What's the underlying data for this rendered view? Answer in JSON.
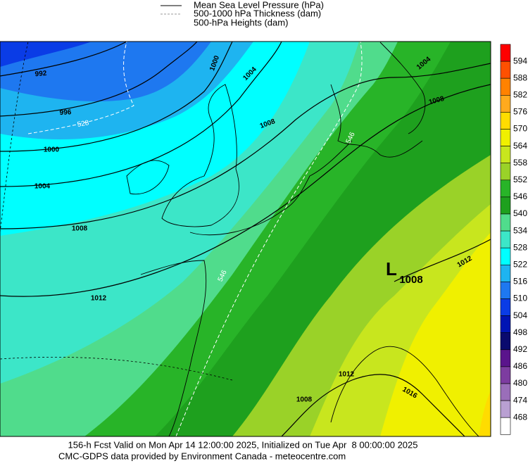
{
  "legend": [
    {
      "label": "Mean Sea Level Pressure (hPa)"
    },
    {
      "label": "500-1000 hPa Thickness (dam)"
    },
    {
      "label": "500-hPa Heights (dam)"
    }
  ],
  "colorbar": {
    "levels": [
      594,
      588,
      582,
      576,
      570,
      564,
      558,
      552,
      546,
      540,
      534,
      528,
      522,
      516,
      510,
      504,
      498,
      492,
      486,
      480,
      474,
      468
    ],
    "colors": [
      "#ff0000",
      "#ff5000",
      "#ff8200",
      "#ffaa1e",
      "#ffdc00",
      "#f0f000",
      "#c8e61e",
      "#9ad228",
      "#28b428",
      "#1ea01e",
      "#50dc8c",
      "#3ce6c8",
      "#00ffff",
      "#1eb4f0",
      "#1e78f0",
      "#0a3ce6",
      "#0014b4",
      "#0a0a6e",
      "#5a148c",
      "#7d3ca0",
      "#9a6eb9",
      "#b9a0d2",
      "#ffffff"
    ]
  },
  "map": {
    "isobar_labels": [
      "992",
      "996",
      "1000",
      "1004",
      "1000",
      "1004",
      "1008",
      "1008",
      "1012",
      "1008",
      "1004",
      "1012",
      "1012",
      "1008",
      "1016"
    ],
    "thickness_labels": [
      "528",
      "546",
      "546"
    ],
    "low": {
      "symbol": "L",
      "pressure": "1008"
    }
  },
  "footer": {
    "line1": "156-h Fcst Valid on Mon Apr 14 12:00:00 2025, Initialized on Tue Apr  8 00:00:00 2025",
    "line2": "CMC-GDPS data provided by Environment Canada - meteocentre.com"
  }
}
